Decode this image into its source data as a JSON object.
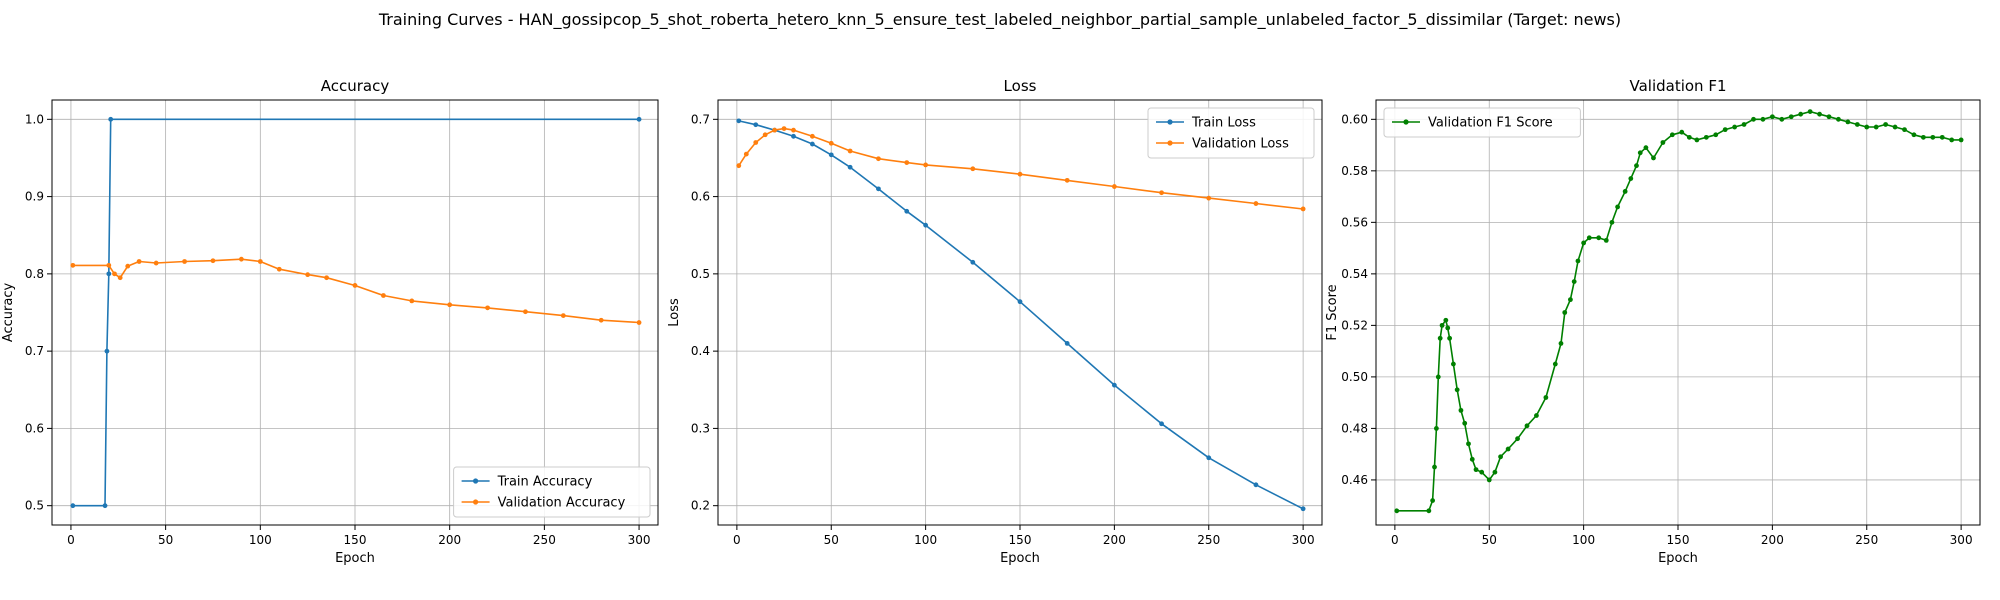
{
  "suptitle": "Training Curves - HAN_gossipcop_5_shot_roberta_hetero_knn_5_ensure_test_labeled_neighbor_partial_sample_unlabeled_factor_5_dissimilar (Target: news)",
  "colors": {
    "blue": "#1f77b4",
    "orange": "#ff7f0e",
    "green": "#008000",
    "grid": "#b0b0b0"
  },
  "chart_data": [
    {
      "type": "line",
      "title": "Accuracy",
      "xlabel": "Epoch",
      "ylabel": "Accuracy",
      "xlim": [
        -10,
        310
      ],
      "ylim": [
        0.475,
        1.025
      ],
      "xticks": [
        0,
        50,
        100,
        150,
        200,
        250,
        300
      ],
      "yticks": [
        0.5,
        0.6,
        0.7,
        0.8,
        0.9,
        1.0
      ],
      "grid": true,
      "legend": "lower right",
      "series": [
        {
          "name": "Train Accuracy",
          "color": "blue",
          "points": [
            [
              1,
              0.5
            ],
            [
              18,
              0.5
            ],
            [
              19,
              0.7
            ],
            [
              20,
              0.8
            ],
            [
              21,
              1.0
            ],
            [
              300,
              1.0
            ]
          ]
        },
        {
          "name": "Validation Accuracy",
          "color": "orange",
          "points": [
            [
              1,
              0.811
            ],
            [
              20,
              0.811
            ],
            [
              23,
              0.8
            ],
            [
              26,
              0.795
            ],
            [
              30,
              0.81
            ],
            [
              36,
              0.816
            ],
            [
              45,
              0.814
            ],
            [
              60,
              0.816
            ],
            [
              75,
              0.817
            ],
            [
              90,
              0.819
            ],
            [
              100,
              0.816
            ],
            [
              110,
              0.806
            ],
            [
              125,
              0.799
            ],
            [
              135,
              0.795
            ],
            [
              150,
              0.785
            ],
            [
              165,
              0.772
            ],
            [
              180,
              0.765
            ],
            [
              200,
              0.76
            ],
            [
              220,
              0.756
            ],
            [
              240,
              0.751
            ],
            [
              260,
              0.746
            ],
            [
              280,
              0.74
            ],
            [
              300,
              0.737
            ]
          ]
        }
      ]
    },
    {
      "type": "line",
      "title": "Loss",
      "xlabel": "Epoch",
      "ylabel": "Loss",
      "xlim": [
        -10,
        310
      ],
      "ylim": [
        0.175,
        0.725
      ],
      "xticks": [
        0,
        50,
        100,
        150,
        200,
        250,
        300
      ],
      "yticks": [
        0.2,
        0.3,
        0.4,
        0.5,
        0.6,
        0.7
      ],
      "grid": true,
      "legend": "upper right",
      "series": [
        {
          "name": "Train Loss",
          "color": "blue",
          "points": [
            [
              1,
              0.698
            ],
            [
              10,
              0.693
            ],
            [
              20,
              0.686
            ],
            [
              30,
              0.678
            ],
            [
              40,
              0.668
            ],
            [
              50,
              0.654
            ],
            [
              60,
              0.638
            ],
            [
              75,
              0.61
            ],
            [
              90,
              0.581
            ],
            [
              100,
              0.563
            ],
            [
              125,
              0.515
            ],
            [
              150,
              0.464
            ],
            [
              175,
              0.41
            ],
            [
              200,
              0.356
            ],
            [
              225,
              0.306
            ],
            [
              250,
              0.262
            ],
            [
              275,
              0.227
            ],
            [
              300,
              0.196
            ]
          ]
        },
        {
          "name": "Validation Loss",
          "color": "orange",
          "points": [
            [
              1,
              0.64
            ],
            [
              5,
              0.655
            ],
            [
              10,
              0.67
            ],
            [
              15,
              0.68
            ],
            [
              20,
              0.686
            ],
            [
              25,
              0.688
            ],
            [
              30,
              0.686
            ],
            [
              40,
              0.678
            ],
            [
              50,
              0.669
            ],
            [
              60,
              0.659
            ],
            [
              75,
              0.649
            ],
            [
              90,
              0.644
            ],
            [
              100,
              0.641
            ],
            [
              125,
              0.636
            ],
            [
              150,
              0.629
            ],
            [
              175,
              0.621
            ],
            [
              200,
              0.613
            ],
            [
              225,
              0.605
            ],
            [
              250,
              0.598
            ],
            [
              275,
              0.591
            ],
            [
              300,
              0.584
            ]
          ]
        }
      ]
    },
    {
      "type": "line",
      "title": "Validation F1",
      "xlabel": "Epoch",
      "ylabel": "F1 Score",
      "xlim": [
        -10,
        310
      ],
      "ylim": [
        0.4425,
        0.6075
      ],
      "xticks": [
        0,
        50,
        100,
        150,
        200,
        250,
        300
      ],
      "yticks": [
        0.46,
        0.48,
        0.5,
        0.52,
        0.54,
        0.56,
        0.58,
        0.6
      ],
      "grid": true,
      "legend": "upper left",
      "series": [
        {
          "name": "Validation F1 Score",
          "color": "green",
          "points": [
            [
              1,
              0.448
            ],
            [
              18,
              0.448
            ],
            [
              20,
              0.452
            ],
            [
              21,
              0.465
            ],
            [
              22,
              0.48
            ],
            [
              23,
              0.5
            ],
            [
              24,
              0.515
            ],
            [
              25,
              0.52
            ],
            [
              27,
              0.522
            ],
            [
              28,
              0.519
            ],
            [
              29,
              0.515
            ],
            [
              31,
              0.505
            ],
            [
              33,
              0.495
            ],
            [
              35,
              0.487
            ],
            [
              37,
              0.482
            ],
            [
              39,
              0.474
            ],
            [
              41,
              0.468
            ],
            [
              43,
              0.464
            ],
            [
              46,
              0.463
            ],
            [
              50,
              0.46
            ],
            [
              53,
              0.463
            ],
            [
              56,
              0.469
            ],
            [
              60,
              0.472
            ],
            [
              65,
              0.476
            ],
            [
              70,
              0.481
            ],
            [
              75,
              0.485
            ],
            [
              80,
              0.492
            ],
            [
              85,
              0.505
            ],
            [
              88,
              0.513
            ],
            [
              90,
              0.525
            ],
            [
              93,
              0.53
            ],
            [
              95,
              0.537
            ],
            [
              97,
              0.545
            ],
            [
              100,
              0.552
            ],
            [
              103,
              0.554
            ],
            [
              108,
              0.554
            ],
            [
              112,
              0.553
            ],
            [
              115,
              0.56
            ],
            [
              118,
              0.566
            ],
            [
              122,
              0.572
            ],
            [
              125,
              0.577
            ],
            [
              128,
              0.582
            ],
            [
              130,
              0.587
            ],
            [
              133,
              0.589
            ],
            [
              137,
              0.585
            ],
            [
              142,
              0.591
            ],
            [
              147,
              0.594
            ],
            [
              152,
              0.595
            ],
            [
              156,
              0.593
            ],
            [
              160,
              0.592
            ],
            [
              165,
              0.593
            ],
            [
              170,
              0.594
            ],
            [
              175,
              0.596
            ],
            [
              180,
              0.597
            ],
            [
              185,
              0.598
            ],
            [
              190,
              0.6
            ],
            [
              195,
              0.6
            ],
            [
              200,
              0.601
            ],
            [
              205,
              0.6
            ],
            [
              210,
              0.601
            ],
            [
              215,
              0.602
            ],
            [
              220,
              0.603
            ],
            [
              225,
              0.602
            ],
            [
              230,
              0.601
            ],
            [
              235,
              0.6
            ],
            [
              240,
              0.599
            ],
            [
              245,
              0.598
            ],
            [
              250,
              0.597
            ],
            [
              255,
              0.597
            ],
            [
              260,
              0.598
            ],
            [
              265,
              0.597
            ],
            [
              270,
              0.596
            ],
            [
              275,
              0.594
            ],
            [
              280,
              0.593
            ],
            [
              285,
              0.593
            ],
            [
              290,
              0.593
            ],
            [
              295,
              0.592
            ],
            [
              300,
              0.592
            ]
          ]
        }
      ]
    }
  ]
}
